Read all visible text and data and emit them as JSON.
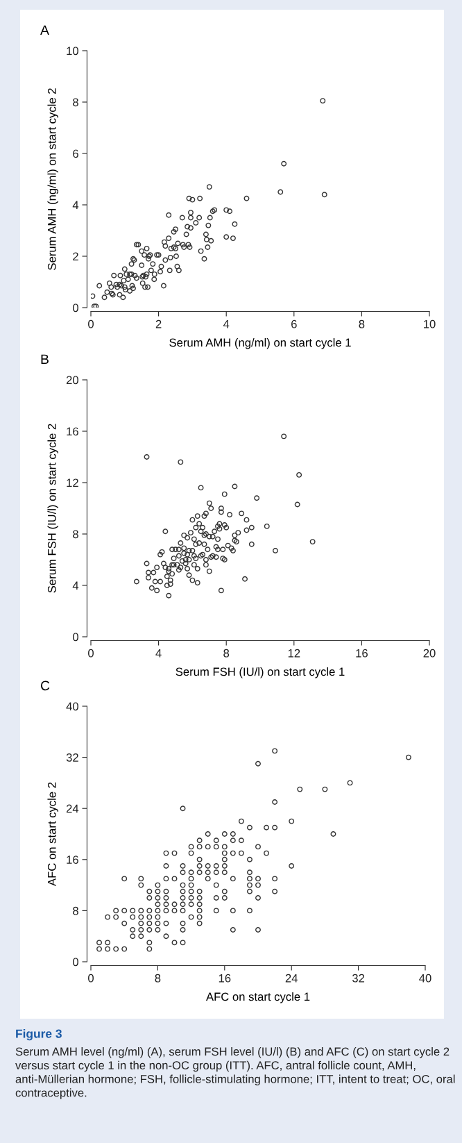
{
  "chart_data": [
    {
      "type": "scatter",
      "title": "A",
      "xlabel": "Serum AMH (ng/ml) on start cycle 1",
      "ylabel": "Serum AMH (ng/ml) on start cycle 2",
      "color": "#333333",
      "marker": "circle",
      "xlim": [
        0,
        10
      ],
      "ylim": [
        0,
        10
      ],
      "xticks": [
        0,
        2,
        4,
        6,
        8,
        10
      ],
      "yticks": [
        0,
        2,
        4,
        6,
        8,
        10
      ],
      "x": [
        0.05,
        0.1,
        0.15,
        0.25,
        0.4,
        0.48,
        0.55,
        0.6,
        0.62,
        0.65,
        0.68,
        0.75,
        0.78,
        0.85,
        0.85,
        0.87,
        0.9,
        0.95,
        0.97,
        1.0,
        1.0,
        1.02,
        1.05,
        1.1,
        1.15,
        1.2,
        1.15,
        1.2,
        1.22,
        1.25,
        1.25,
        1.28,
        1.3,
        1.35,
        1.35,
        1.4,
        1.5,
        1.5,
        1.52,
        1.53,
        1.55,
        1.58,
        1.6,
        1.62,
        1.65,
        1.65,
        1.68,
        1.7,
        1.72,
        1.75,
        1.78,
        1.83,
        1.87,
        1.88,
        1.95,
        2.0,
        2.05,
        2.08,
        2.15,
        2.17,
        2.2,
        2.2,
        2.3,
        2.3,
        2.33,
        2.35,
        2.37,
        2.45,
        2.45,
        2.5,
        2.5,
        2.52,
        2.55,
        2.57,
        2.6,
        2.7,
        2.72,
        2.75,
        2.82,
        2.85,
        2.88,
        2.9,
        2.92,
        2.95,
        2.95,
        2.95,
        3.0,
        3.1,
        3.2,
        3.22,
        3.25,
        3.35,
        3.4,
        3.42,
        3.45,
        3.47,
        3.5,
        3.52,
        3.55,
        3.6,
        3.65,
        4.0,
        4.0,
        4.1,
        4.2,
        4.25,
        4.6,
        5.6,
        5.7,
        6.85,
        6.9
      ],
      "values": [
        0.45,
        0.05,
        0.05,
        0.85,
        0.4,
        0.6,
        0.95,
        0.8,
        0.55,
        0.5,
        1.25,
        0.9,
        0.8,
        0.9,
        0.5,
        1.25,
        0.85,
        0.4,
        1.05,
        1.5,
        0.8,
        0.7,
        1.3,
        1.1,
        1.3,
        1.3,
        0.65,
        1.7,
        0.85,
        1.9,
        0.75,
        1.85,
        1.25,
        1.15,
        2.45,
        2.45,
        2.2,
        1.65,
        1.2,
        0.95,
        1.25,
        2.05,
        0.8,
        1.2,
        2.3,
        1.3,
        0.8,
        1.9,
        2.0,
        2.05,
        1.45,
        1.7,
        1.1,
        1.3,
        2.05,
        2.05,
        1.4,
        1.6,
        0.85,
        2.55,
        2.4,
        1.85,
        2.7,
        3.6,
        1.45,
        1.95,
        2.3,
        2.35,
        2.95,
        2.3,
        3.05,
        2.0,
        1.6,
        2.5,
        1.45,
        3.5,
        2.45,
        2.35,
        2.85,
        3.15,
        2.45,
        4.25,
        2.35,
        3.1,
        3.7,
        3.5,
        4.2,
        3.3,
        3.5,
        4.25,
        2.2,
        1.9,
        2.85,
        2.65,
        2.35,
        3.2,
        4.7,
        3.5,
        2.6,
        3.75,
        3.8,
        3.8,
        2.75,
        3.75,
        2.7,
        3.25,
        4.25,
        4.5,
        5.6,
        8.05,
        4.4
      ]
    },
    {
      "type": "scatter",
      "title": "B",
      "xlabel": "Serum FSH (IU/l) on start cycle 1",
      "ylabel": "Serum FSH (IU/l) on start cycle 2",
      "color": "#333333",
      "marker": "circle",
      "xlim": [
        0,
        20
      ],
      "ylim": [
        0,
        20
      ],
      "xticks": [
        0,
        4,
        8,
        12,
        16,
        20
      ],
      "yticks": [
        0,
        4,
        8,
        12,
        16,
        20
      ],
      "x": [
        2.7,
        3.3,
        3.3,
        3.4,
        3.4,
        3.6,
        3.7,
        3.8,
        3.9,
        3.9,
        4.1,
        4.2,
        4.1,
        4.3,
        4.4,
        4.4,
        4.5,
        4.5,
        4.6,
        4.6,
        4.6,
        4.7,
        4.7,
        4.8,
        4.8,
        4.8,
        4.9,
        4.9,
        5.0,
        5.1,
        5.2,
        5.2,
        5.2,
        5.3,
        5.3,
        5.3,
        5.4,
        5.5,
        5.5,
        5.5,
        5.6,
        5.6,
        5.7,
        5.7,
        5.7,
        5.8,
        5.8,
        5.8,
        5.9,
        6.0,
        6.0,
        6.0,
        6.1,
        6.1,
        6.1,
        6.2,
        6.2,
        6.2,
        6.3,
        6.3,
        6.3,
        6.4,
        6.4,
        6.5,
        6.5,
        6.5,
        6.6,
        6.6,
        6.7,
        6.7,
        6.7,
        6.8,
        6.8,
        6.8,
        6.8,
        6.9,
        7.0,
        7.0,
        7.0,
        7.1,
        7.1,
        7.2,
        7.2,
        7.3,
        7.4,
        7.4,
        7.5,
        7.5,
        7.5,
        7.6,
        7.6,
        7.7,
        7.7,
        7.7,
        7.8,
        7.8,
        7.9,
        7.9,
        7.9,
        8.0,
        8.1,
        8.2,
        8.3,
        8.4,
        8.5,
        8.5,
        8.5,
        8.6,
        8.7,
        8.9,
        9.1,
        9.2,
        9.2,
        9.5,
        9.5,
        9.8,
        10.4,
        10.9,
        11.4,
        12.2,
        12.3,
        13.1
      ],
      "values": [
        4.3,
        14.0,
        5.7,
        5.0,
        4.6,
        3.8,
        5.0,
        4.3,
        3.6,
        5.4,
        4.3,
        6.6,
        6.4,
        5.7,
        8.2,
        5.4,
        4.7,
        4.0,
        3.2,
        5.3,
        5.1,
        4.4,
        4.1,
        6.8,
        5.6,
        4.9,
        6.1,
        5.6,
        6.8,
        5.6,
        5.2,
        6.3,
        6.8,
        13.6,
        7.3,
        5.4,
        5.9,
        7.9,
        6.9,
        6.5,
        5.7,
        6.0,
        6.4,
        5.3,
        7.7,
        6.0,
        4.8,
        6.7,
        8.1,
        4.4,
        9.1,
        6.7,
        6.3,
        7.6,
        5.6,
        6.1,
        8.5,
        7.2,
        9.4,
        5.3,
        4.2,
        8.8,
        7.3,
        8.2,
        11.6,
        6.3,
        8.5,
        6.4,
        9.4,
        7.9,
        7.2,
        9.6,
        8.0,
        5.6,
        6.0,
        6.8,
        7.8,
        5.1,
        10.4,
        10.0,
        6.2,
        7.8,
        6.3,
        8.2,
        6.2,
        7.0,
        6.8,
        7.6,
        8.6,
        8.4,
        8.8,
        10.0,
        9.7,
        3.6,
        6.8,
        6.1,
        11.1,
        8.7,
        6.0,
        8.5,
        7.1,
        9.5,
        6.9,
        6.7,
        7.5,
        7.9,
        11.7,
        7.4,
        8.1,
        9.6,
        4.5,
        9.1,
        8.3,
        8.5,
        7.2,
        10.8,
        8.6,
        6.7,
        15.6,
        10.3,
        12.6,
        7.4
      ]
    },
    {
      "type": "scatter",
      "title": "C",
      "xlabel": "AFC on start cycle 1",
      "ylabel": "AFC on start cycle 2",
      "color": "#333333",
      "marker": "circle",
      "xlim": [
        0,
        40
      ],
      "ylim": [
        0,
        40
      ],
      "xticks": [
        0,
        8,
        16,
        24,
        32,
        40
      ],
      "yticks": [
        0,
        8,
        16,
        24,
        32,
        40
      ],
      "x": [
        22,
        20,
        38,
        31,
        25,
        28,
        22,
        11,
        18,
        24,
        19,
        21,
        22,
        14,
        16,
        17,
        29,
        13,
        15,
        17,
        18,
        12,
        13,
        14,
        15,
        16,
        20,
        9,
        10,
        12,
        16,
        17,
        18,
        21,
        13,
        16,
        19,
        9,
        11,
        13,
        14,
        15,
        16,
        24,
        11,
        12,
        13,
        14,
        15,
        16,
        19,
        4,
        6,
        9,
        10,
        12,
        14,
        17,
        19,
        20,
        22,
        6,
        8,
        11,
        12,
        15,
        19,
        20,
        7,
        8,
        9,
        11,
        12,
        13,
        16,
        19,
        22,
        7,
        8,
        9,
        11,
        12,
        13,
        15,
        16,
        20,
        8,
        9,
        10,
        11,
        12,
        13,
        3,
        4,
        5,
        6,
        7,
        8,
        9,
        10,
        11,
        13,
        15,
        17,
        19,
        2,
        3,
        5,
        6,
        7,
        8,
        12,
        13,
        4,
        6,
        7,
        8,
        9,
        11,
        13,
        5,
        6,
        7,
        8,
        11,
        17,
        20,
        5,
        6,
        9,
        1,
        2,
        7,
        10,
        11,
        1,
        2,
        3,
        4,
        7
      ],
      "values": [
        33,
        31,
        32,
        28,
        27,
        27,
        25,
        24,
        22,
        22,
        21,
        21,
        21,
        20,
        20,
        20,
        20,
        19,
        19,
        19,
        19,
        18,
        18,
        18,
        18,
        18,
        18,
        17,
        17,
        17,
        17,
        17,
        17,
        17,
        16,
        16,
        16,
        15,
        15,
        15,
        15,
        15,
        15,
        15,
        14,
        14,
        14,
        14,
        14,
        14,
        14,
        13,
        13,
        13,
        13,
        13,
        13,
        13,
        13,
        13,
        13,
        12,
        12,
        12,
        12,
        12,
        12,
        12,
        11,
        11,
        11,
        11,
        11,
        11,
        11,
        11,
        11,
        10,
        10,
        10,
        10,
        10,
        10,
        10,
        10,
        10,
        9,
        9,
        9,
        9,
        9,
        9,
        8,
        8,
        8,
        8,
        8,
        8,
        8,
        8,
        8,
        8,
        8,
        8,
        8,
        7,
        7,
        7,
        7,
        7,
        7,
        7,
        7,
        6,
        6,
        6,
        6,
        6,
        6,
        6,
        5,
        5,
        5,
        5,
        5,
        5,
        5,
        4,
        4,
        4,
        3,
        3,
        3,
        3,
        3,
        2,
        2,
        2,
        2,
        2
      ],
      "annotations": [
        "Figure 3",
        "Serum AMH level (ng/ml) (A), serum FSH level (IU/l) (B) and AFC (C) on start cycle 2 versus start cycle 1 in the non-OC group (ITT). AFC, antral follicle count, AMH, anti-Müllerian hormone; FSH, follicle-stimulating hormone; ITT, intent to treat; OC, oral contraceptive."
      ]
    }
  ]
}
